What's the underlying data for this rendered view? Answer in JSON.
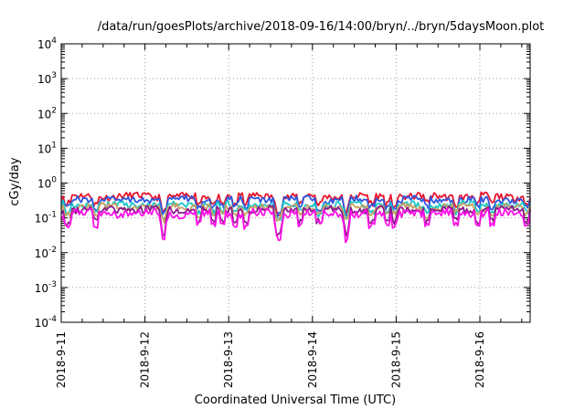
{
  "chart_data": {
    "type": "line",
    "title": "/data/run/goesPlots/archive/2018-09-16/14:00/bryn/../bryn/5daysMoon.plot",
    "xlabel": "Coordinated Universal Time (UTC)",
    "ylabel": "cGy/day",
    "y_scale": "log",
    "ylim": [
      0.0001,
      10000
    ],
    "y_ticks": [
      {
        "base": "10",
        "exp": "4",
        "value": 10000
      },
      {
        "base": "10",
        "exp": "3",
        "value": 1000
      },
      {
        "base": "10",
        "exp": "2",
        "value": 100
      },
      {
        "base": "10",
        "exp": "1",
        "value": 10
      },
      {
        "base": "10",
        "exp": "0",
        "value": 1
      },
      {
        "base": "10",
        "exp": "-1",
        "value": 0.1
      },
      {
        "base": "10",
        "exp": "-2",
        "value": 0.01
      },
      {
        "base": "10",
        "exp": "-3",
        "value": 0.001
      },
      {
        "base": "10",
        "exp": "-4",
        "value": 0.0001
      }
    ],
    "xlim": [
      "2018-09-11 00:00",
      "2018-09-16 14:00"
    ],
    "x_ticks": [
      "2018-9-11",
      "2018-9-12",
      "2018-9-13",
      "2018-9-14",
      "2018-9-15",
      "2018-9-16"
    ],
    "grid": true,
    "series": [
      {
        "color": "#e8162e",
        "level": 0.42,
        "spread": 0.1
      },
      {
        "color": "#2c55e0",
        "level": 0.34,
        "spread": 0.1
      },
      {
        "color": "#19c8c8",
        "level": 0.24,
        "spread": 0.1
      },
      {
        "color": "#c8a064",
        "level": 0.21,
        "spread": 0.1
      },
      {
        "color": "#8a1a8a",
        "level": 0.175,
        "spread": 0.1
      },
      {
        "color": "#ff10e8",
        "level": 0.14,
        "spread": 0.12
      }
    ],
    "dips_days": [
      0.18,
      1.0,
      2.9,
      2.97,
      3.95,
      4.35,
      4.6,
      5.0,
      5.3,
      6.2,
      6.25,
      6.85,
      7.4,
      8.15,
      8.2,
      8.9,
      9.35,
      9.55,
      10.5,
      11.3,
      11.95,
      12.35,
      13.35
    ]
  }
}
